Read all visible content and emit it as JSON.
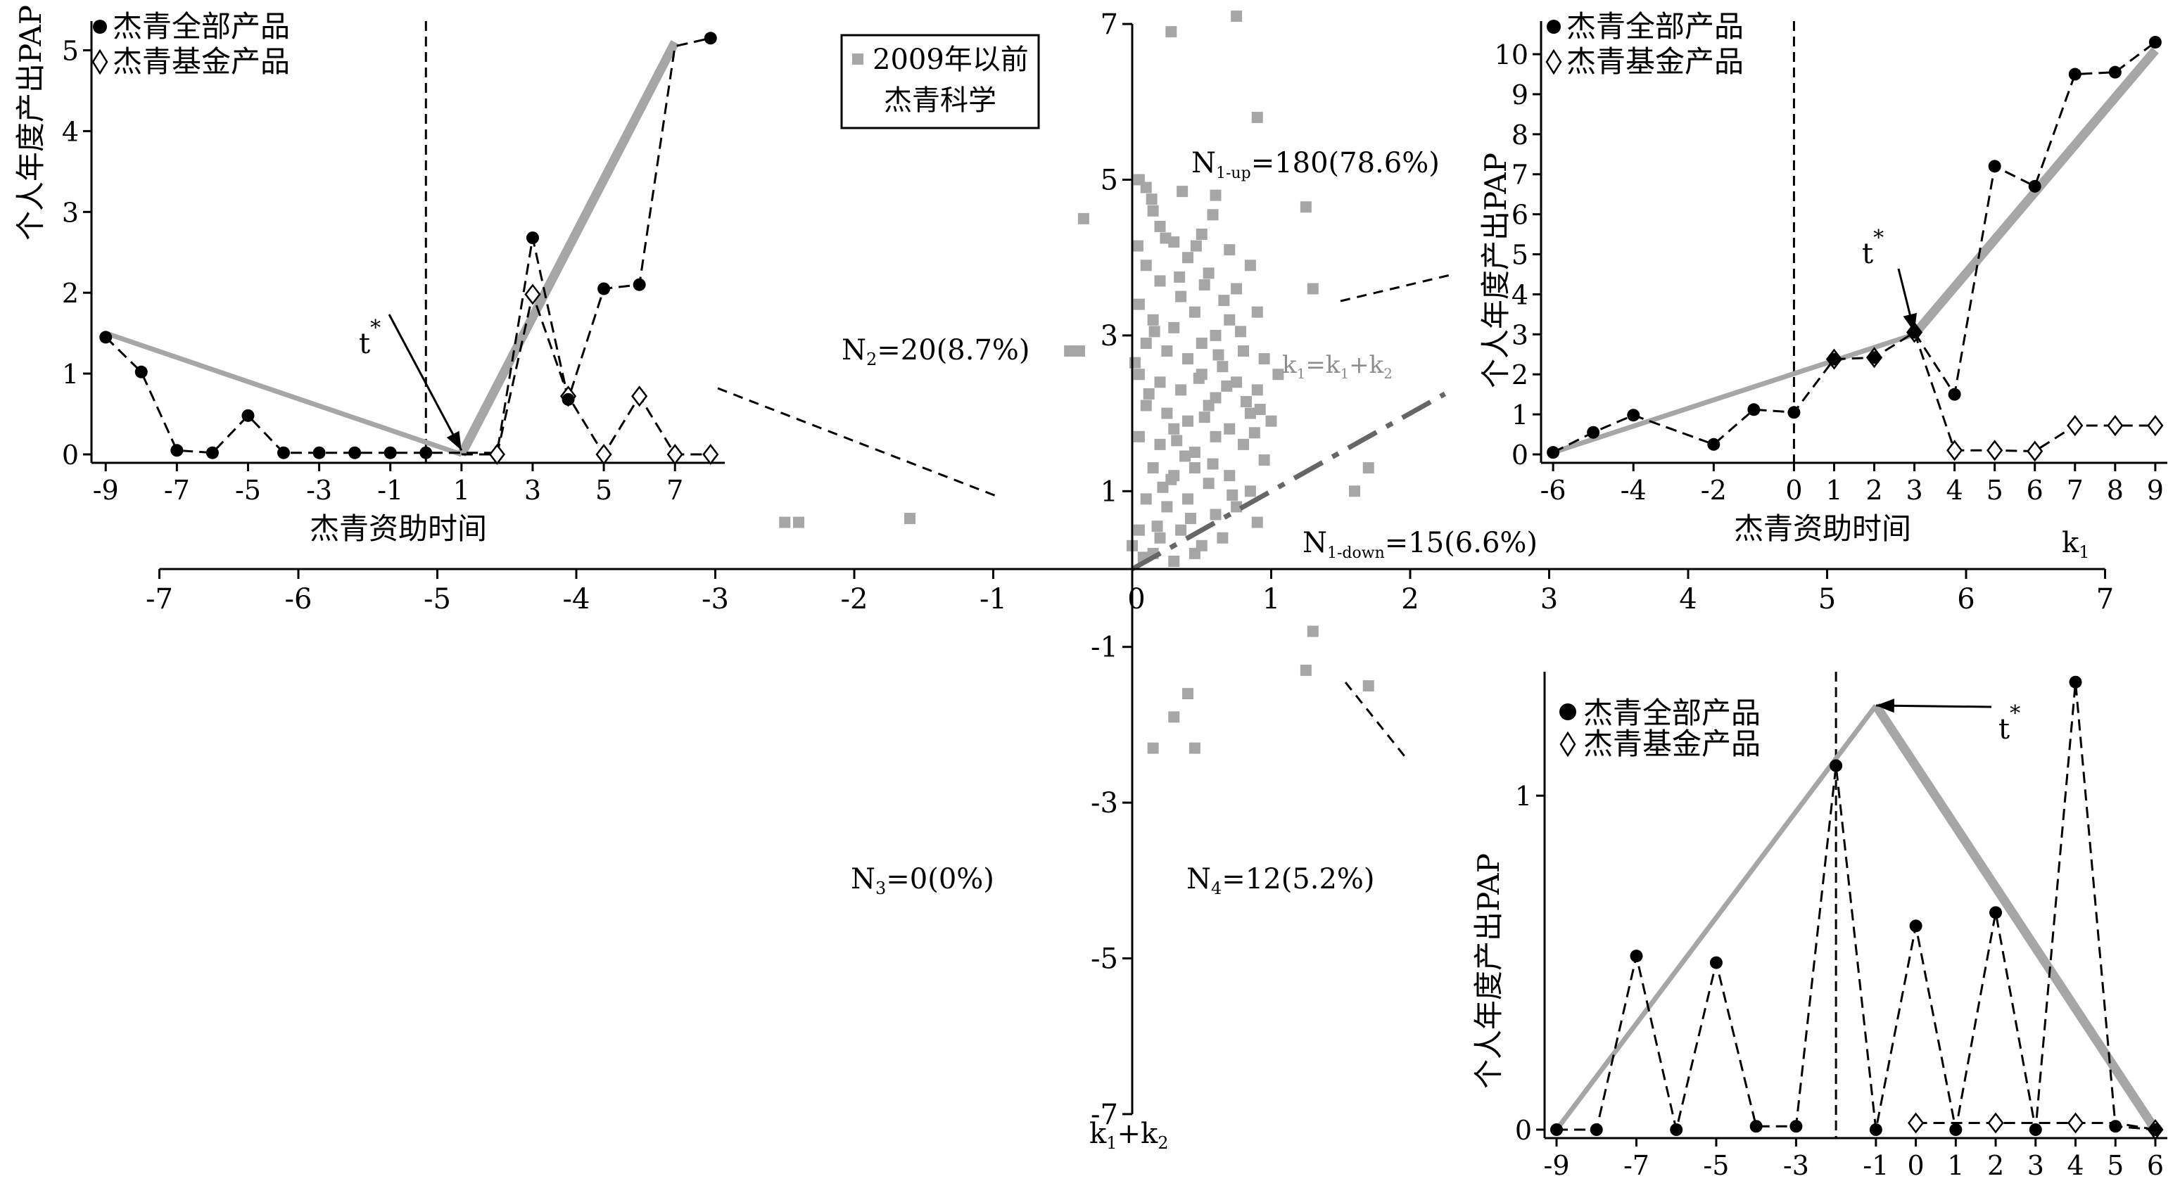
{
  "chart_data": [
    {
      "id": "main",
      "type": "scatter",
      "legend": "2009年以前\n杰青科学",
      "xlim": [
        -7,
        7
      ],
      "ylim": [
        -7,
        7
      ],
      "xticks": [
        -7,
        -6,
        -5,
        -4,
        -3,
        -2,
        -1,
        0,
        1,
        2,
        3,
        4,
        5,
        6,
        7
      ],
      "yticks": [
        -7,
        -5,
        -3,
        -1,
        1,
        3,
        5,
        7
      ],
      "xlabel": "k1",
      "ylabel": "k1+k2",
      "reference_line": {
        "label": "k1=k1+k2",
        "from": [
          0,
          0
        ],
        "to": [
          2.25,
          2.25
        ]
      },
      "annotations": {
        "n1up": {
          "prefix": "N",
          "sub": "1-up",
          "text": "=180(78.6%)"
        },
        "n1down": {
          "prefix": "N",
          "sub": "1-down",
          "text": "=15(6.6%)"
        },
        "n2": {
          "prefix": "N",
          "sub": "2",
          "text": "=20(8.7%)"
        },
        "n3": {
          "prefix": "N",
          "sub": "3",
          "text": "=0(0%)"
        },
        "n4": {
          "prefix": "N",
          "sub": "4",
          "text": "=12(5.2%)"
        }
      },
      "x_axis_label": {
        "main": "k",
        "sub": "1"
      },
      "y_axis_label": {
        "a": "k",
        "a_sub": "1",
        "plus": "+k",
        "b_sub": "2"
      },
      "ref_label": {
        "a": "k",
        "a_sub": "1",
        "eq": "=k",
        "b_sub": "1",
        "plus": "+k",
        "c_sub": "2"
      },
      "points": [
        [
          -2.5,
          0.6
        ],
        [
          -2.4,
          0.6
        ],
        [
          -1.6,
          0.65
        ],
        [
          -0.45,
          2.8
        ],
        [
          -0.38,
          2.8
        ],
        [
          -0.35,
          4.5
        ],
        [
          0.28,
          6.9
        ],
        [
          0.75,
          7.1
        ],
        [
          0.9,
          5.8
        ],
        [
          1.25,
          4.65
        ],
        [
          1.3,
          3.6
        ],
        [
          1.7,
          1.3
        ],
        [
          1.6,
          1.0
        ],
        [
          0.4,
          -1.6
        ],
        [
          0.3,
          -1.9
        ],
        [
          1.25,
          -1.3
        ],
        [
          1.3,
          -0.8
        ],
        [
          1.7,
          -1.5
        ],
        [
          0.15,
          -2.3
        ],
        [
          0.45,
          -2.3
        ],
        [
          0.05,
          5.0
        ],
        [
          0.1,
          4.9
        ],
        [
          0.15,
          4.6
        ],
        [
          0.2,
          4.4
        ],
        [
          0.3,
          4.2
        ],
        [
          0.4,
          4.0
        ],
        [
          0.5,
          4.3
        ],
        [
          0.6,
          4.8
        ],
        [
          0.7,
          4.1
        ],
        [
          0.1,
          3.9
        ],
        [
          0.2,
          3.7
        ],
        [
          0.35,
          3.5
        ],
        [
          0.55,
          3.8
        ],
        [
          0.75,
          3.6
        ],
        [
          0.85,
          3.9
        ],
        [
          0.05,
          3.4
        ],
        [
          0.15,
          3.2
        ],
        [
          0.3,
          3.1
        ],
        [
          0.45,
          3.3
        ],
        [
          0.6,
          3.0
        ],
        [
          0.7,
          3.2
        ],
        [
          0.9,
          3.3
        ],
        [
          0.1,
          2.9
        ],
        [
          0.25,
          2.8
        ],
        [
          0.4,
          2.7
        ],
        [
          0.5,
          2.9
        ],
        [
          0.65,
          2.6
        ],
        [
          0.8,
          2.8
        ],
        [
          0.95,
          2.7
        ],
        [
          0.05,
          2.5
        ],
        [
          0.2,
          2.4
        ],
        [
          0.35,
          2.3
        ],
        [
          0.5,
          2.5
        ],
        [
          0.6,
          2.2
        ],
        [
          0.75,
          2.4
        ],
        [
          0.9,
          2.3
        ],
        [
          1.05,
          2.5
        ],
        [
          0.1,
          2.1
        ],
        [
          0.25,
          2.0
        ],
        [
          0.4,
          1.9
        ],
        [
          0.55,
          2.1
        ],
        [
          0.7,
          1.8
        ],
        [
          0.85,
          2.0
        ],
        [
          1.0,
          1.9
        ],
        [
          0.05,
          1.7
        ],
        [
          0.2,
          1.6
        ],
        [
          0.3,
          1.8
        ],
        [
          0.45,
          1.5
        ],
        [
          0.6,
          1.7
        ],
        [
          0.8,
          1.6
        ],
        [
          0.95,
          1.4
        ],
        [
          0.15,
          1.3
        ],
        [
          0.3,
          1.2
        ],
        [
          0.45,
          1.3
        ],
        [
          0.55,
          1.1
        ],
        [
          0.7,
          1.2
        ],
        [
          0.85,
          1.0
        ],
        [
          0.1,
          0.9
        ],
        [
          0.25,
          0.8
        ],
        [
          0.4,
          0.9
        ],
        [
          0.6,
          0.7
        ],
        [
          0.75,
          0.8
        ],
        [
          0.9,
          0.6
        ],
        [
          0.05,
          0.5
        ],
        [
          0.2,
          0.4
        ],
        [
          0.35,
          0.5
        ],
        [
          0.5,
          0.3
        ],
        [
          0.65,
          0.4
        ],
        [
          0.15,
          0.2
        ],
        [
          0.3,
          0.1
        ],
        [
          0.45,
          0.2
        ],
        [
          0.0,
          0.3
        ],
        [
          0.08,
          0.15
        ],
        [
          0.22,
          1.05
        ],
        [
          0.38,
          1.45
        ],
        [
          0.52,
          1.95
        ],
        [
          0.68,
          2.35
        ],
        [
          0.82,
          2.15
        ],
        [
          0.12,
          2.25
        ],
        [
          0.28,
          1.15
        ],
        [
          0.42,
          0.65
        ],
        [
          0.58,
          1.35
        ],
        [
          0.72,
          0.95
        ],
        [
          0.88,
          1.75
        ],
        [
          0.18,
          0.55
        ],
        [
          0.32,
          1.65
        ],
        [
          0.48,
          2.45
        ],
        [
          0.62,
          2.75
        ],
        [
          0.78,
          3.05
        ],
        [
          0.92,
          2.05
        ],
        [
          0.02,
          2.65
        ],
        [
          0.16,
          3.05
        ],
        [
          0.34,
          3.75
        ],
        [
          0.46,
          4.15
        ],
        [
          0.58,
          4.55
        ],
        [
          0.66,
          3.45
        ],
        [
          0.24,
          4.25
        ],
        [
          0.14,
          4.75
        ],
        [
          0.04,
          4.15
        ],
        [
          0.36,
          4.85
        ],
        [
          0.52,
          3.65
        ]
      ]
    },
    {
      "id": "tl",
      "type": "line",
      "legend": [
        "杰青全部产品",
        "杰青基金产品"
      ],
      "xlabel": "杰青资助时间",
      "ylabel": "个人年度产出PAP",
      "xlim": [
        -9.4,
        8.4
      ],
      "ylim": [
        0,
        5.1
      ],
      "xticks": [
        -9,
        -7,
        -5,
        -3,
        -1,
        1,
        3,
        5,
        7
      ],
      "yticks": [
        0,
        1,
        2,
        3,
        4,
        5
      ],
      "vline": 0,
      "tstar_label": "t",
      "series_all": [
        [
          -9,
          1.45
        ],
        [
          -8,
          1.02
        ],
        [
          -7,
          0.05
        ],
        [
          -6,
          0.02
        ],
        [
          -5,
          0.48
        ],
        [
          -4,
          0.02
        ],
        [
          -3,
          0.02
        ],
        [
          -2,
          0.02
        ],
        [
          -1,
          0.02
        ],
        [
          0,
          0.02
        ],
        [
          3,
          2.68
        ],
        [
          4,
          0.68
        ],
        [
          5,
          2.05
        ],
        [
          6,
          2.1
        ],
        [
          8,
          5.15
        ]
      ],
      "series_fund": [
        [
          2,
          0.0
        ],
        [
          3,
          1.98
        ],
        [
          4,
          0.72
        ],
        [
          5,
          0.0
        ],
        [
          6,
          0.72
        ],
        [
          7,
          0.0
        ],
        [
          8,
          0.0
        ]
      ],
      "dash_all": [
        [
          -9,
          1.45
        ],
        [
          -8,
          1.02
        ],
        [
          -7,
          0.05
        ],
        [
          -6,
          0.02
        ],
        [
          -5,
          0.48
        ],
        [
          -4,
          0.02
        ],
        [
          -3,
          0.02
        ],
        [
          -2,
          0.02
        ],
        [
          -1,
          0.02
        ],
        [
          0,
          0.02
        ],
        [
          2,
          0.02
        ],
        [
          3,
          2.68
        ],
        [
          4,
          0.68
        ],
        [
          5,
          2.05
        ],
        [
          6,
          2.1
        ],
        [
          7,
          5.05
        ],
        [
          8,
          5.15
        ]
      ],
      "dash_fund": [
        [
          1,
          0.0
        ],
        [
          2,
          0.0
        ],
        [
          3,
          1.98
        ],
        [
          4,
          0.72
        ],
        [
          5,
          0.0
        ],
        [
          6,
          0.72
        ],
        [
          7,
          0.0
        ],
        [
          8,
          0.0
        ]
      ],
      "fit_left": [
        [
          -9,
          1.5
        ],
        [
          1,
          0.0
        ]
      ],
      "fit_right": [
        [
          1,
          0.0
        ],
        [
          7,
          5.1
        ]
      ],
      "tstar_point": [
        1,
        0.05
      ]
    },
    {
      "id": "tr",
      "type": "line",
      "legend": [
        "杰青全部产品",
        "杰青基金产品"
      ],
      "xlabel": "杰青资助时间",
      "ylabel": "个人年度产出PAP",
      "xlim": [
        -6.3,
        9.3
      ],
      "ylim": [
        0,
        10.3
      ],
      "xticks": [
        -6,
        -4,
        -2,
        0,
        1,
        2,
        3,
        4,
        5,
        6,
        7,
        8,
        9
      ],
      "yticks": [
        0,
        1,
        2,
        3,
        4,
        5,
        6,
        7,
        8,
        9,
        10
      ],
      "vline": 0,
      "tstar_label": "t",
      "series_all": [
        [
          -6,
          0.05
        ],
        [
          -5,
          0.55
        ],
        [
          -4,
          0.98
        ],
        [
          -2,
          0.25
        ],
        [
          -1,
          1.12
        ],
        [
          0,
          1.05
        ],
        [
          1,
          2.38
        ],
        [
          2,
          2.42
        ],
        [
          3,
          3.05
        ],
        [
          4,
          1.5
        ],
        [
          5,
          7.2
        ],
        [
          6,
          6.7
        ],
        [
          7,
          9.5
        ],
        [
          8,
          9.55
        ],
        [
          9,
          10.3
        ]
      ],
      "series_fund": [
        [
          1,
          2.38
        ],
        [
          2,
          2.42
        ],
        [
          3,
          3.05
        ],
        [
          4,
          0.1
        ],
        [
          5,
          0.1
        ],
        [
          6,
          0.08
        ],
        [
          7,
          0.72
        ],
        [
          8,
          0.72
        ],
        [
          9,
          0.72
        ]
      ],
      "dash_all": [
        [
          -6,
          0.05
        ],
        [
          -5,
          0.55
        ],
        [
          -4,
          0.98
        ],
        [
          -2,
          0.25
        ],
        [
          -1,
          1.12
        ],
        [
          0,
          1.05
        ],
        [
          1,
          2.38
        ],
        [
          2,
          2.42
        ],
        [
          3,
          3.05
        ],
        [
          4,
          1.5
        ],
        [
          5,
          7.2
        ],
        [
          6,
          6.7
        ],
        [
          7,
          9.5
        ],
        [
          8,
          9.55
        ],
        [
          9,
          10.3
        ]
      ],
      "dash_fund": [
        [
          3,
          3.05
        ],
        [
          4,
          0.1
        ],
        [
          5,
          0.1
        ],
        [
          6,
          0.08
        ],
        [
          7,
          0.72
        ],
        [
          8,
          0.72
        ],
        [
          9,
          0.72
        ]
      ],
      "fit_left": [
        [
          -6,
          0.05
        ],
        [
          3,
          3.0
        ]
      ],
      "fit_right": [
        [
          3,
          3.0
        ],
        [
          9,
          10.1
        ]
      ],
      "tstar_point": [
        3,
        3.05
      ]
    },
    {
      "id": "br",
      "type": "line",
      "legend": [
        "杰青全部产品",
        "杰青基金产品"
      ],
      "ylabel": "个人年度产出PAP",
      "xlim": [
        -9.3,
        6.3
      ],
      "ylim": [
        0,
        1.35
      ],
      "xticks": [
        -9,
        -7,
        -5,
        -3,
        -1,
        0,
        1,
        2,
        3,
        4,
        5,
        6
      ],
      "yticks": [
        0,
        1
      ],
      "vline": -2,
      "tstar_label": "t",
      "series_all": [
        [
          -9,
          0.0
        ],
        [
          -8,
          0.0
        ],
        [
          -7,
          0.52
        ],
        [
          -6,
          0.0
        ],
        [
          -5,
          0.5
        ],
        [
          -4,
          0.01
        ],
        [
          -3,
          0.01
        ],
        [
          -2,
          1.09
        ],
        [
          -1,
          0.0
        ],
        [
          0,
          0.61
        ],
        [
          1,
          0.0
        ],
        [
          2,
          0.65
        ],
        [
          3,
          0.0
        ],
        [
          4,
          1.34
        ],
        [
          5,
          0.01
        ],
        [
          6,
          0.0
        ]
      ],
      "series_fund": [
        [
          0,
          0.02
        ],
        [
          2,
          0.02
        ],
        [
          4,
          0.02
        ],
        [
          6,
          0.0
        ]
      ],
      "dash_all": [
        [
          -9,
          0.0
        ],
        [
          -8,
          0.0
        ],
        [
          -7,
          0.52
        ],
        [
          -6,
          0.0
        ],
        [
          -5,
          0.5
        ],
        [
          -4,
          0.01
        ],
        [
          -3,
          0.01
        ],
        [
          -2,
          1.09
        ],
        [
          -1,
          0.0
        ],
        [
          0,
          0.61
        ],
        [
          1,
          0.0
        ],
        [
          2,
          0.65
        ],
        [
          3,
          0.0
        ],
        [
          4,
          1.34
        ],
        [
          5,
          0.01
        ],
        [
          6,
          0.0
        ]
      ],
      "dash_fund": [
        [
          0,
          0.02
        ],
        [
          1,
          0.02
        ],
        [
          2,
          0.02
        ],
        [
          3,
          0.02
        ],
        [
          4,
          0.02
        ],
        [
          5,
          0.02
        ],
        [
          6,
          0.0
        ]
      ],
      "fit_left": [
        [
          -9,
          0.0
        ],
        [
          -1,
          1.27
        ]
      ],
      "fit_right": [
        [
          -1,
          1.27
        ],
        [
          6,
          0.0
        ]
      ],
      "tstar_point": [
        -1,
        1.27
      ]
    }
  ]
}
